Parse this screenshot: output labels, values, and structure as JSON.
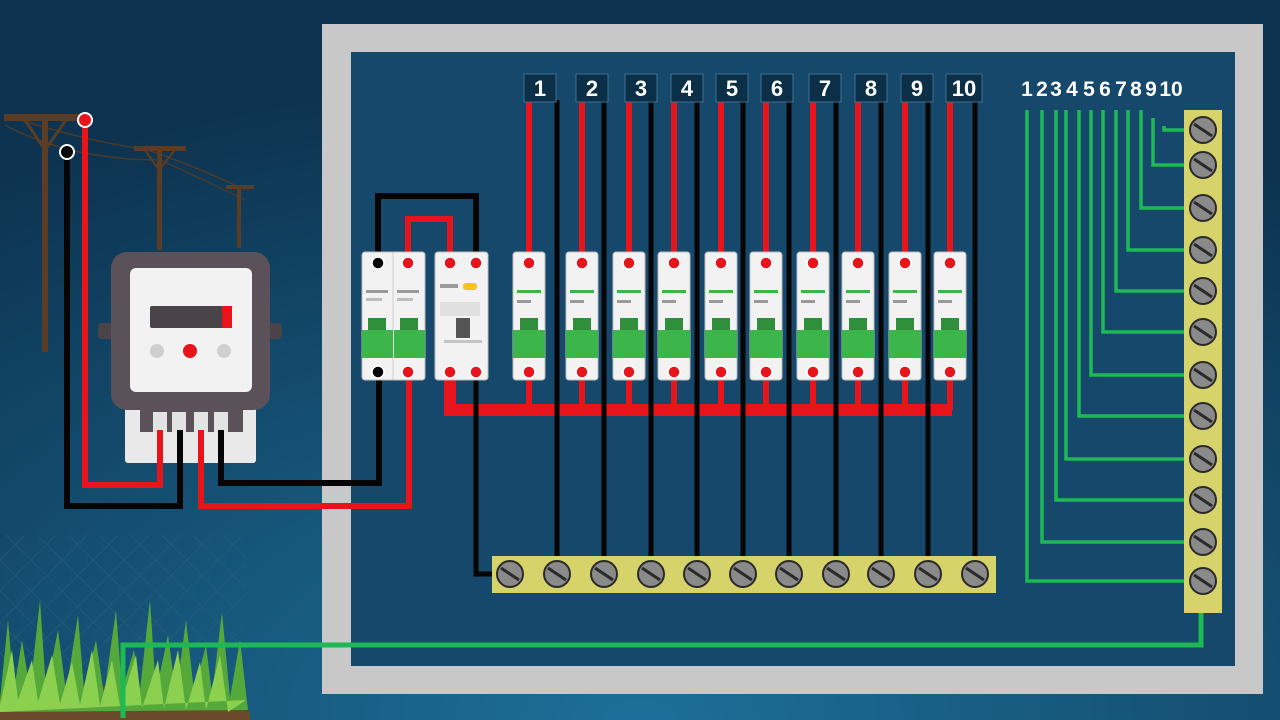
{
  "circuit_labels": [
    "1",
    "2",
    "3",
    "4",
    "5",
    "6",
    "7",
    "8",
    "9",
    "10"
  ],
  "ground_labels": [
    "1",
    "2",
    "3",
    "4",
    "5",
    "6",
    "7",
    "8",
    "9",
    "10"
  ],
  "colors": {
    "background": "#0f3a57",
    "panel_frame": "#c8c8c8",
    "panel_inner": "#15486a",
    "live_wire": "#e8141b",
    "neutral_wire": "#050505",
    "earth_wire": "#1db954",
    "terminal_bar": "#d5d36a",
    "breaker_body": "#f2f2f2",
    "breaker_toggle": "#3cb54a",
    "meter_body": "#5a5258"
  },
  "icons": {
    "utility_pole": "utility-pole-icon",
    "energy_meter": "energy-meter-icon",
    "main_breaker": "double-pole-breaker-icon",
    "rcd": "rcd-icon",
    "mcb": "mcb-icon",
    "screw": "terminal-screw-icon",
    "grass": "grass-icon"
  }
}
